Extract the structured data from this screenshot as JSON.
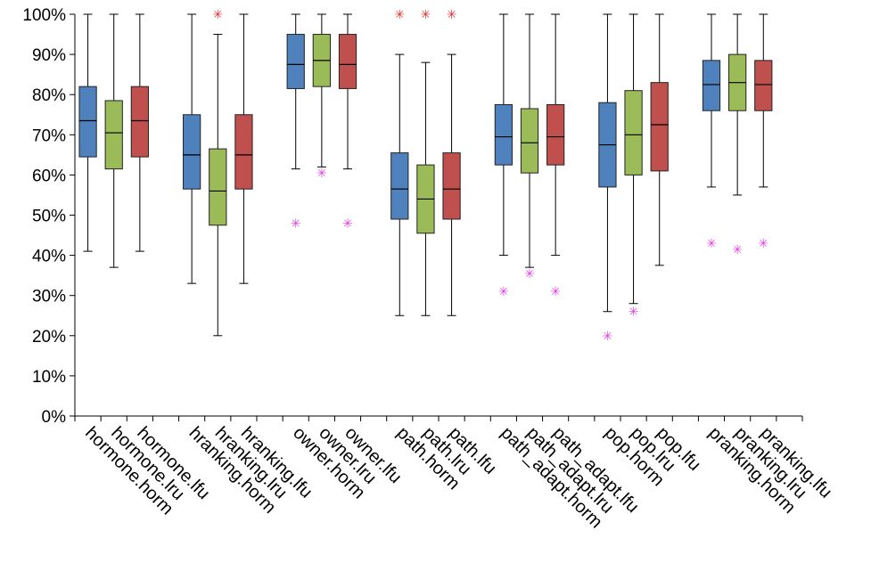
{
  "chart_data": {
    "type": "boxplot",
    "title": "",
    "xlabel": "",
    "ylabel": "",
    "ylim": [
      0,
      100
    ],
    "y_ticks": [
      "0%",
      "10%",
      "20%",
      "30%",
      "40%",
      "50%",
      "60%",
      "70%",
      "80%",
      "90%",
      "100%"
    ],
    "grid": false,
    "colors": {
      "horm": "#4f81bd",
      "lru": "#9bbb59",
      "lfu": "#c0504d",
      "outlier_red": "#e03030",
      "outlier_magenta": "#e040e0"
    },
    "groups": [
      {
        "name": "hormone",
        "boxes": [
          {
            "label": "hormone.horm",
            "policy": "horm",
            "min": 41,
            "q1": 64.5,
            "median": 73.5,
            "q3": 82,
            "max": 100,
            "outliers": []
          },
          {
            "label": "hormone.lru",
            "policy": "lru",
            "min": 37,
            "q1": 61.5,
            "median": 70.5,
            "q3": 78.5,
            "max": 100,
            "outliers": []
          },
          {
            "label": "hormone.lfu",
            "policy": "lfu",
            "min": 41,
            "q1": 64.5,
            "median": 73.5,
            "q3": 82,
            "max": 100,
            "outliers": []
          }
        ]
      },
      {
        "name": "hranking",
        "boxes": [
          {
            "label": "hranking.horm",
            "policy": "horm",
            "min": 33,
            "q1": 56.5,
            "median": 65,
            "q3": 75,
            "max": 100,
            "outliers": []
          },
          {
            "label": "hranking.lru",
            "policy": "lru",
            "min": 20,
            "q1": 47.5,
            "median": 56,
            "q3": 66.5,
            "max": 95,
            "outliers": [
              {
                "value": 100,
                "color": "red"
              }
            ]
          },
          {
            "label": "hranking.lfu",
            "policy": "lfu",
            "min": 33,
            "q1": 56.5,
            "median": 65,
            "q3": 75,
            "max": 100,
            "outliers": []
          }
        ]
      },
      {
        "name": "owner",
        "boxes": [
          {
            "label": "owner.horm",
            "policy": "horm",
            "min": 61.5,
            "q1": 81.5,
            "median": 87.5,
            "q3": 95,
            "max": 100,
            "outliers": [
              {
                "value": 48,
                "color": "magenta"
              }
            ]
          },
          {
            "label": "owner.lru",
            "policy": "lru",
            "min": 62,
            "q1": 82,
            "median": 88.5,
            "q3": 95,
            "max": 100,
            "outliers": [
              {
                "value": 60.5,
                "color": "magenta"
              }
            ]
          },
          {
            "label": "owner.lfu",
            "policy": "lfu",
            "min": 61.5,
            "q1": 81.5,
            "median": 87.5,
            "q3": 95,
            "max": 100,
            "outliers": [
              {
                "value": 48,
                "color": "magenta"
              }
            ]
          }
        ]
      },
      {
        "name": "path",
        "boxes": [
          {
            "label": "path.horm",
            "policy": "horm",
            "min": 25,
            "q1": 49,
            "median": 56.5,
            "q3": 65.5,
            "max": 90,
            "outliers": [
              {
                "value": 100,
                "color": "red"
              }
            ]
          },
          {
            "label": "path.lru",
            "policy": "lru",
            "min": 25,
            "q1": 45.5,
            "median": 54,
            "q3": 62.5,
            "max": 88,
            "outliers": [
              {
                "value": 100,
                "color": "red"
              }
            ]
          },
          {
            "label": "path.lfu",
            "policy": "lfu",
            "min": 25,
            "q1": 49,
            "median": 56.5,
            "q3": 65.5,
            "max": 90,
            "outliers": [
              {
                "value": 100,
                "color": "red"
              }
            ]
          }
        ]
      },
      {
        "name": "path_adapt",
        "boxes": [
          {
            "label": "path_adapt.horm",
            "policy": "horm",
            "min": 40,
            "q1": 62.5,
            "median": 69.5,
            "q3": 77.5,
            "max": 100,
            "outliers": [
              {
                "value": 31,
                "color": "magenta"
              }
            ]
          },
          {
            "label": "path_adapt.lru",
            "policy": "lru",
            "min": 37,
            "q1": 60.5,
            "median": 68,
            "q3": 76.5,
            "max": 100,
            "outliers": [
              {
                "value": 35.5,
                "color": "magenta"
              }
            ]
          },
          {
            "label": "path_adapt.lfu",
            "policy": "lfu",
            "min": 40,
            "q1": 62.5,
            "median": 69.5,
            "q3": 77.5,
            "max": 100,
            "outliers": [
              {
                "value": 31,
                "color": "magenta"
              }
            ]
          }
        ]
      },
      {
        "name": "pop",
        "boxes": [
          {
            "label": "pop.horm",
            "policy": "horm",
            "min": 26,
            "q1": 57,
            "median": 67.5,
            "q3": 78,
            "max": 100,
            "outliers": [
              {
                "value": 20,
                "color": "magenta"
              }
            ]
          },
          {
            "label": "pop.lru",
            "policy": "lru",
            "min": 28,
            "q1": 60,
            "median": 70,
            "q3": 81,
            "max": 100,
            "outliers": [
              {
                "value": 26,
                "color": "magenta"
              }
            ]
          },
          {
            "label": "pop.lfu",
            "policy": "lfu",
            "min": 37.5,
            "q1": 61,
            "median": 72.5,
            "q3": 83,
            "max": 100,
            "outliers": []
          }
        ]
      },
      {
        "name": "pranking",
        "boxes": [
          {
            "label": "pranking.horm",
            "policy": "horm",
            "min": 57,
            "q1": 76,
            "median": 82.5,
            "q3": 88.5,
            "max": 100,
            "outliers": [
              {
                "value": 43,
                "color": "magenta"
              }
            ]
          },
          {
            "label": "pranking.lru",
            "policy": "lru",
            "min": 55,
            "q1": 76,
            "median": 83,
            "q3": 90,
            "max": 100,
            "outliers": [
              {
                "value": 41.5,
                "color": "magenta"
              }
            ]
          },
          {
            "label": "pranking.lfu",
            "policy": "lfu",
            "min": 57,
            "q1": 76,
            "median": 82.5,
            "q3": 88.5,
            "max": 100,
            "outliers": [
              {
                "value": 43,
                "color": "magenta"
              }
            ]
          }
        ]
      }
    ]
  }
}
